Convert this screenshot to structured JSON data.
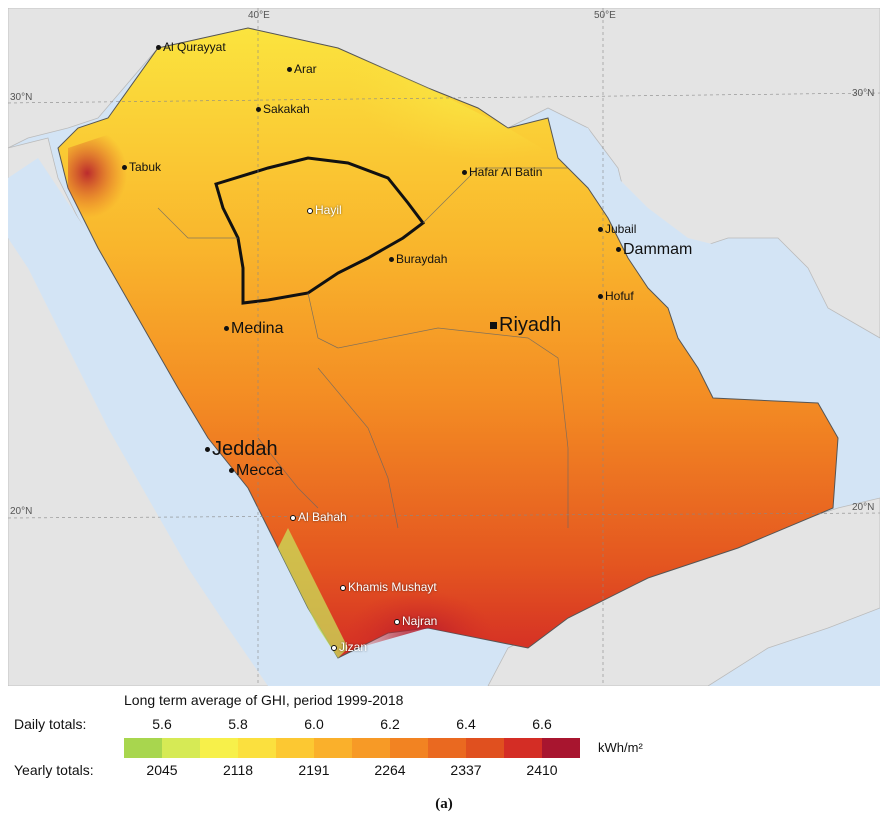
{
  "map": {
    "grid_labels": {
      "lon_40": "40°E",
      "lon_50": "50°E",
      "lat_30_left": "30°N",
      "lat_30_right": "30°N",
      "lat_20_left": "20°N",
      "lat_20_right": "20°N"
    },
    "cities": {
      "al_qurayyat": "Al Qurayyat",
      "arar": "Arar",
      "sakakah": "Sakakah",
      "tabuk": "Tabuk",
      "hayil": "Hayil",
      "hafar_al_batin": "Hafar Al Batin",
      "jubail": "Jubail",
      "dammam": "Dammam",
      "buraydah": "Buraydah",
      "hofuf": "Hofuf",
      "riyadh": "Riyadh",
      "medina": "Medina",
      "jeddah": "Jeddah",
      "mecca": "Mecca",
      "al_bahah": "Al Bahah",
      "khamis_mushayt": "Khamis Mushayt",
      "najran": "Najran",
      "jizan": "Jizan"
    },
    "colors": {
      "sea": "#d3e4f5",
      "land_outside": "#e4e4e4",
      "highlight_border": "#111111"
    }
  },
  "legend": {
    "title": "Long term average of GHI, period 1999-2018",
    "daily_label": "Daily totals:",
    "yearly_label": "Yearly totals:",
    "daily_ticks": [
      "5.6",
      "5.8",
      "6.0",
      "6.2",
      "6.4",
      "6.6"
    ],
    "yearly_ticks": [
      "2045",
      "2118",
      "2191",
      "2264",
      "2337",
      "2410"
    ],
    "unit": "kWh/m²",
    "colors": [
      "#a8d64e",
      "#d6ea55",
      "#f7f04a",
      "#fbe03e",
      "#fcc832",
      "#fab02b",
      "#f79a26",
      "#f28322",
      "#ea6920",
      "#e0501f",
      "#d42d25",
      "#a8152f"
    ]
  },
  "caption": "(a)"
}
